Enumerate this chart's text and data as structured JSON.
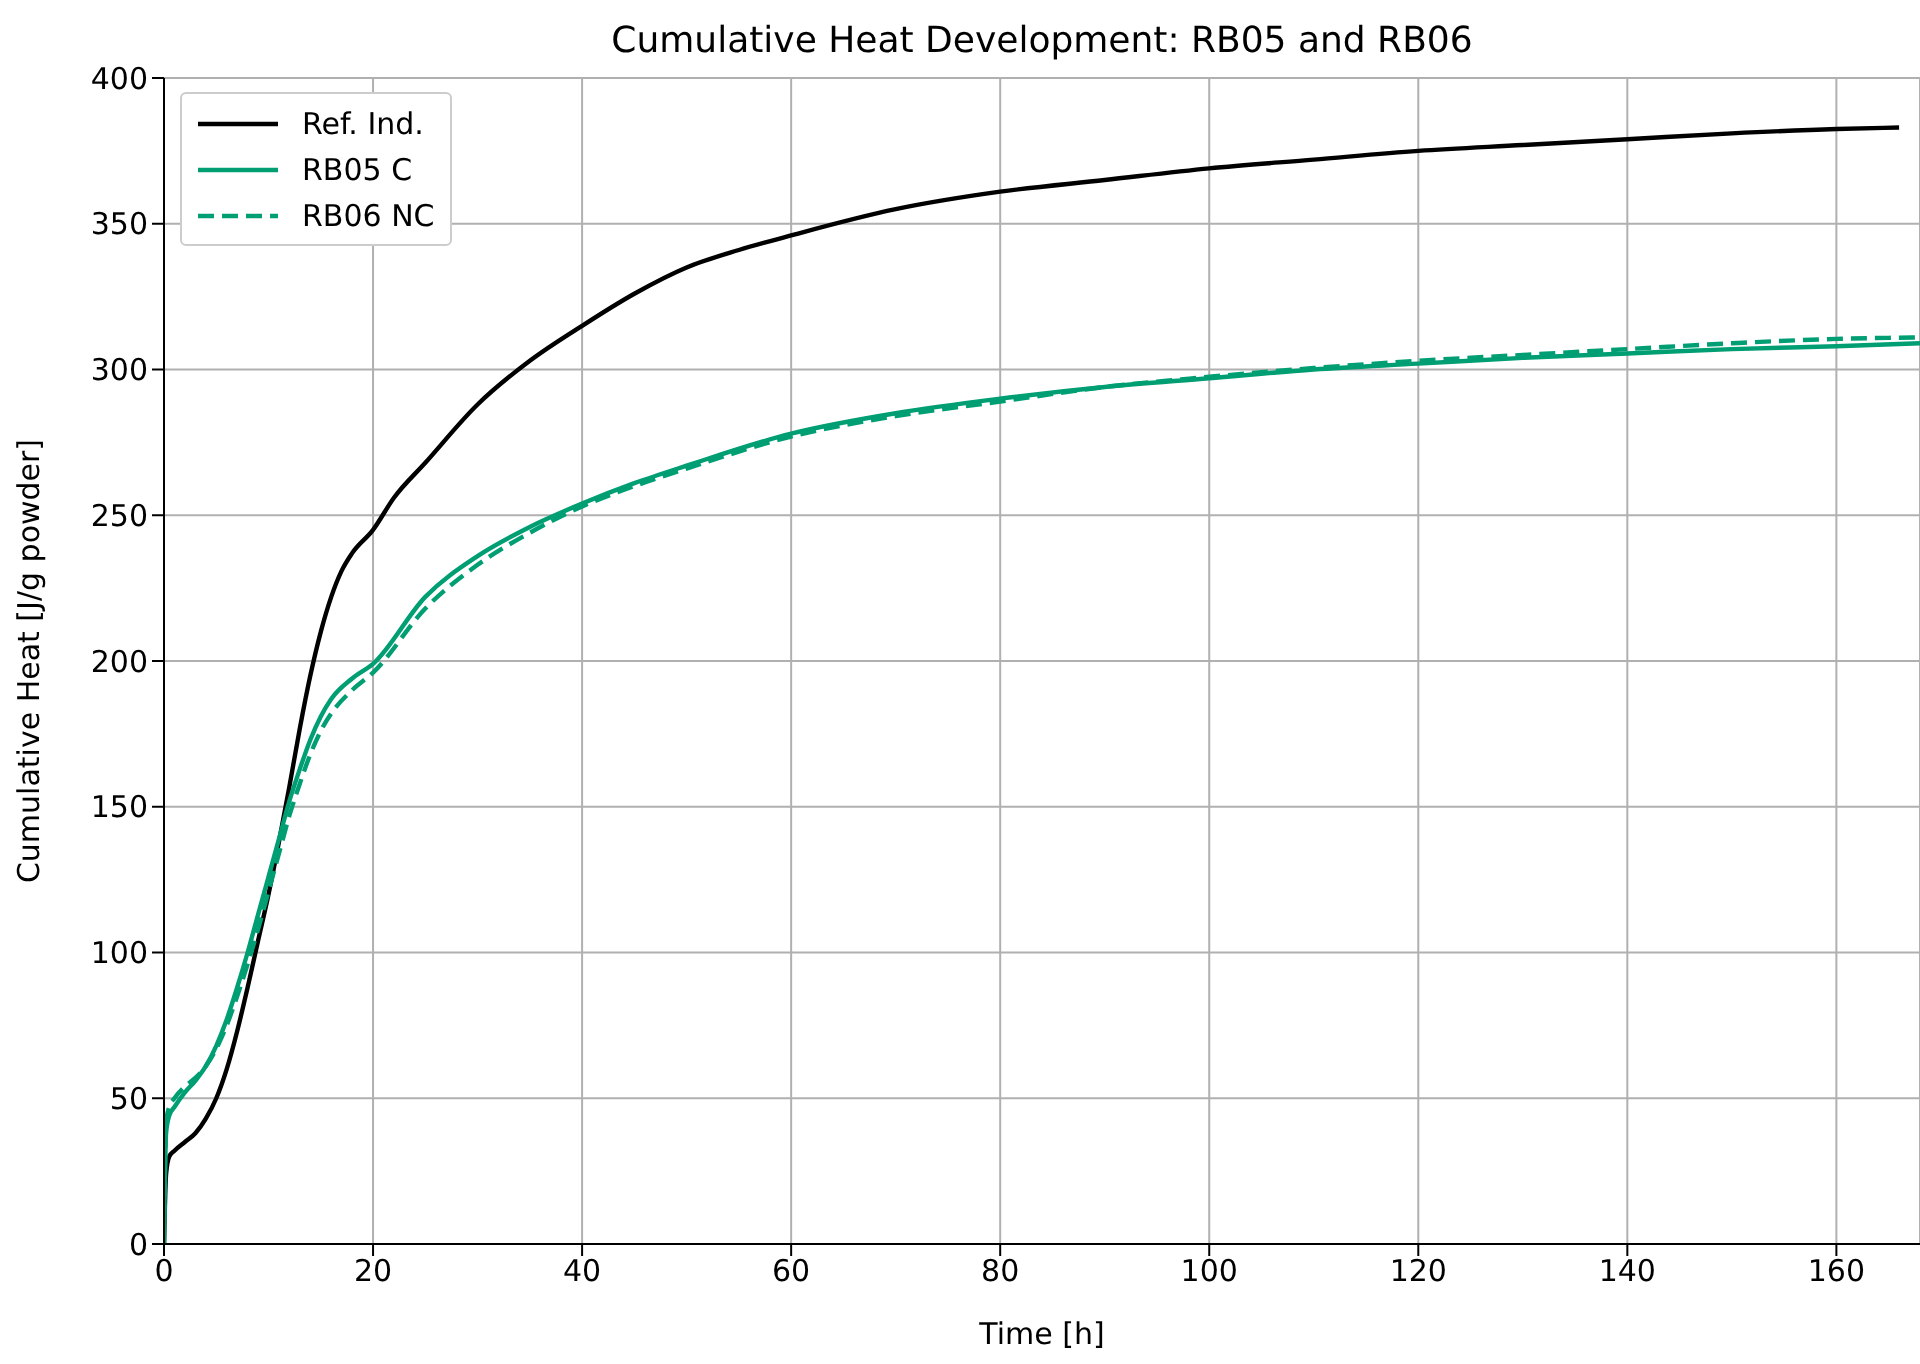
{
  "chart_data": {
    "type": "line",
    "title": "Cumulative Heat Development: RB05 and RB06",
    "xlabel": "Time [h]",
    "ylabel": "Cumulative Heat [J/g powder]",
    "xlim": [
      0,
      168
    ],
    "xticks": [
      0,
      20,
      40,
      60,
      80,
      100,
      120,
      140,
      160
    ],
    "ylim": [
      0,
      400
    ],
    "yticks": [
      0,
      50,
      100,
      150,
      200,
      250,
      300,
      350,
      400
    ],
    "grid": true,
    "legend": "top left",
    "marker": "none",
    "series": [
      {
        "name": "Ref. Ind.",
        "color": "#000000",
        "line_style": "solid",
        "x": [
          0,
          0.2,
          0.5,
          1,
          2,
          3,
          4,
          5,
          6,
          7,
          8,
          9,
          10,
          11,
          12,
          13,
          14,
          15,
          16,
          17,
          18,
          20,
          22,
          25,
          30,
          35,
          40,
          45,
          50,
          55,
          60,
          70,
          80,
          90,
          100,
          110,
          120,
          130,
          140,
          150,
          160,
          166
        ],
        "values": [
          0,
          24,
          30,
          32,
          35,
          38,
          43,
          50,
          60,
          73,
          88,
          104,
          120,
          138,
          157,
          177,
          195,
          210,
          222,
          231,
          237,
          245,
          256,
          268,
          288,
          303,
          315,
          326,
          335,
          341,
          346,
          355,
          361,
          365,
          369,
          372,
          375,
          377,
          379,
          381,
          382.5,
          383
        ]
      },
      {
        "name": "RB05 C",
        "color": "#009e73",
        "line_style": "solid",
        "x": [
          0,
          0.2,
          0.5,
          1,
          2,
          3,
          4,
          5,
          6,
          7,
          8,
          9,
          10,
          11,
          12,
          13,
          14,
          15,
          16,
          18,
          20,
          25,
          30,
          35,
          40,
          45,
          50,
          60,
          70,
          80,
          90,
          100,
          110,
          120,
          130,
          140,
          150,
          160,
          168
        ],
        "values": [
          0,
          38,
          44,
          47,
          52,
          56,
          61,
          68,
          77,
          88,
          100,
          113,
          126,
          139,
          152,
          163,
          173,
          181,
          187,
          194,
          199,
          222,
          236,
          246,
          254,
          261,
          267,
          278,
          285,
          290,
          294,
          297,
          300,
          302,
          304,
          305.5,
          307,
          308,
          309
        ]
      },
      {
        "name": "RB06 NC",
        "color": "#009e73",
        "line_style": "dashed",
        "x": [
          0,
          0.2,
          0.5,
          1,
          2,
          3,
          4,
          5,
          6,
          7,
          8,
          9,
          10,
          11,
          12,
          13,
          14,
          15,
          16,
          18,
          20,
          25,
          30,
          35,
          40,
          45,
          50,
          60,
          70,
          80,
          90,
          100,
          110,
          120,
          130,
          140,
          150,
          160,
          168
        ],
        "values": [
          0,
          42,
          47,
          50,
          54,
          57,
          61,
          67,
          75,
          85,
          96,
          108,
          121,
          134,
          147,
          158,
          168,
          176,
          182,
          190,
          196,
          218,
          233,
          244,
          253,
          260,
          266,
          277,
          284,
          289,
          294,
          297.5,
          300.5,
          303,
          305,
          307,
          309,
          310.5,
          311
        ]
      }
    ]
  }
}
